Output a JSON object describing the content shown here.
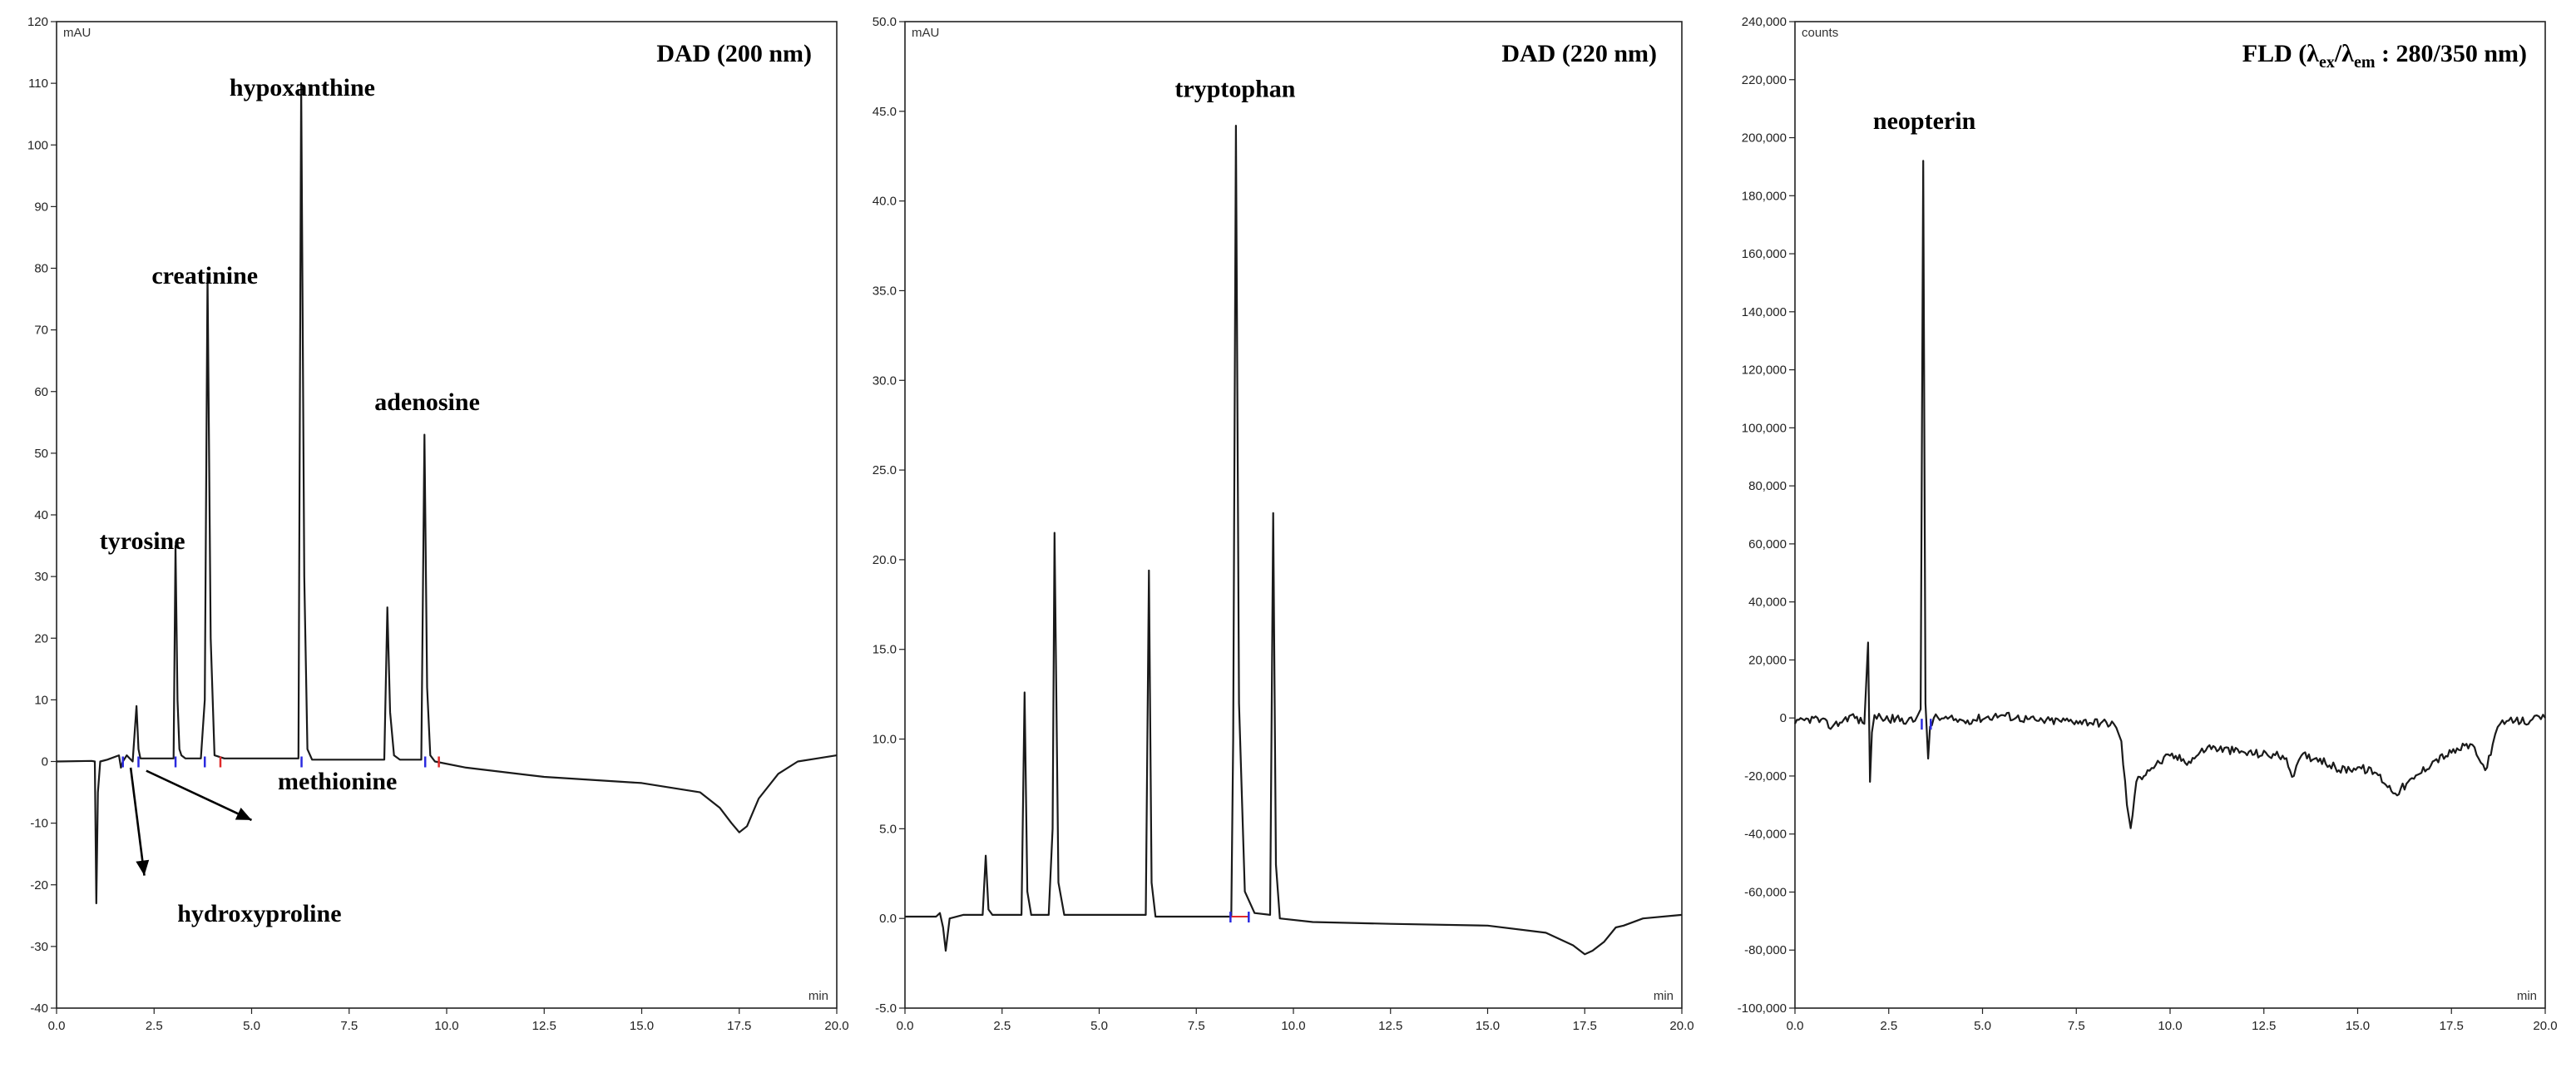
{
  "chart_data": [
    {
      "type": "line",
      "title": "DAD (200 nm)",
      "y_unit": "mAU",
      "x_unit": "min",
      "xlim": [
        0,
        20
      ],
      "ylim": [
        -40,
        120
      ],
      "x_ticks": [
        "0.0",
        "2.5",
        "5.0",
        "7.5",
        "10.0",
        "12.5",
        "15.0",
        "17.5",
        "20.0"
      ],
      "x_tick_values": [
        0,
        2.5,
        5,
        7.5,
        10,
        12.5,
        15,
        17.5,
        20
      ],
      "y_ticks": [
        "-40",
        "-30",
        "-20",
        "-10",
        "0",
        "10",
        "20",
        "30",
        "40",
        "50",
        "60",
        "70",
        "80",
        "90",
        "100",
        "110",
        "120"
      ],
      "y_tick_values": [
        -40,
        -30,
        -20,
        -10,
        0,
        10,
        20,
        30,
        40,
        50,
        60,
        70,
        80,
        90,
        100,
        110,
        120
      ],
      "grid": false,
      "series": [
        {
          "x": [
            0,
            0.9,
            0.98,
            1.02,
            1.06,
            1.12,
            1.3,
            1.6,
            1.65,
            1.7,
            1.8,
            1.95,
            2.05,
            2.1,
            2.15,
            2.25,
            3.0,
            3.05,
            3.1,
            3.15,
            3.2,
            3.3,
            3.7,
            3.8,
            3.87,
            3.95,
            4.05,
            4.3,
            6.2,
            6.27,
            6.35,
            6.43,
            6.55,
            8.4,
            8.48,
            8.55,
            8.65,
            8.8,
            9.35,
            9.43,
            9.5,
            9.58,
            9.7,
            10.5,
            12.5,
            15.0,
            16.5,
            17.0,
            17.3,
            17.5,
            17.7,
            18.0,
            18.5,
            19.0,
            19.5,
            20.0
          ],
          "y": [
            0,
            0.1,
            0,
            -23,
            -5,
            0,
            0.3,
            1,
            -1,
            0,
            1,
            0,
            9,
            2,
            0.5,
            0.5,
            0.5,
            35,
            10,
            2,
            1,
            0.5,
            0.5,
            10,
            79,
            20,
            1,
            0.5,
            0.5,
            110,
            30,
            2,
            0.3,
            0.3,
            25,
            8,
            1,
            0.3,
            0.3,
            53,
            12,
            1,
            0,
            -1,
            -2.5,
            -3.5,
            -5,
            -7.5,
            -10,
            -11.5,
            -10.5,
            -6,
            -2,
            0,
            0.5,
            1
          ]
        }
      ],
      "annotations": [
        "tyrosine",
        "creatinine",
        "hypoxanthine",
        "adenosine",
        "methionine",
        "hydroxyproline"
      ]
    },
    {
      "type": "line",
      "title": "DAD (220 nm)",
      "y_unit": "mAU",
      "x_unit": "min",
      "xlim": [
        0,
        20
      ],
      "ylim": [
        -5,
        50
      ],
      "x_ticks": [
        "0.0",
        "2.5",
        "5.0",
        "7.5",
        "10.0",
        "12.5",
        "15.0",
        "17.5",
        "20.0"
      ],
      "x_tick_values": [
        0,
        2.5,
        5,
        7.5,
        10,
        12.5,
        15,
        17.5,
        20
      ],
      "y_ticks": [
        "-5.0",
        "0.0",
        "5.0",
        "10.0",
        "15.0",
        "20.0",
        "25.0",
        "30.0",
        "35.0",
        "40.0",
        "45.0",
        "50.0"
      ],
      "y_tick_values": [
        -5,
        0,
        5,
        10,
        15,
        20,
        25,
        30,
        35,
        40,
        45,
        50
      ],
      "grid": false,
      "series": [
        {
          "x": [
            0,
            0.8,
            0.9,
            0.98,
            1.05,
            1.15,
            1.5,
            2.0,
            2.08,
            2.15,
            2.25,
            3.0,
            3.08,
            3.15,
            3.25,
            3.7,
            3.8,
            3.85,
            3.95,
            4.1,
            6.2,
            6.28,
            6.35,
            6.45,
            8.4,
            8.45,
            8.52,
            8.6,
            8.75,
            9.0,
            9.4,
            9.48,
            9.55,
            9.65,
            10.5,
            12.5,
            15.0,
            16.5,
            17.2,
            17.5,
            17.7,
            18.0,
            18.3,
            18.5,
            19.0,
            20.0
          ],
          "y": [
            0.1,
            0.1,
            0.3,
            -0.5,
            -1.8,
            0,
            0.2,
            0.2,
            3.5,
            0.5,
            0.2,
            0.2,
            12.6,
            1.5,
            0.2,
            0.2,
            5,
            21.5,
            2,
            0.2,
            0.2,
            19.4,
            2,
            0.1,
            0.1,
            10,
            44.2,
            12,
            1.5,
            0.3,
            0.2,
            22.6,
            3,
            0,
            -0.2,
            -0.3,
            -0.4,
            -0.8,
            -1.5,
            -2,
            -1.8,
            -1.3,
            -0.5,
            -0.4,
            0,
            0.2
          ]
        }
      ],
      "annotations": [
        "tryptophan"
      ]
    },
    {
      "type": "line",
      "title_parts": [
        "FLD",
        "(λ",
        "ex",
        "/λ",
        "em",
        " : 280/350 nm)"
      ],
      "y_unit": "counts",
      "x_unit": "min",
      "xlim": [
        0,
        20
      ],
      "ylim": [
        -100000,
        240000
      ],
      "x_ticks": [
        "0.0",
        "2.5",
        "5.0",
        "7.5",
        "10.0",
        "12.5",
        "15.0",
        "17.5",
        "20.0"
      ],
      "x_tick_values": [
        0,
        2.5,
        5,
        7.5,
        10,
        12.5,
        15,
        17.5,
        20
      ],
      "y_ticks": [
        "-100,000",
        "-80,000",
        "-60,000",
        "-40,000",
        "-20,000",
        "0",
        "20,000",
        "40,000",
        "60,000",
        "80,000",
        "100,000",
        "120,000",
        "140,000",
        "160,000",
        "180,000",
        "200,000",
        "220,000",
        "240,000"
      ],
      "y_tick_values": [
        -100000,
        -80000,
        -60000,
        -40000,
        -20000,
        0,
        20000,
        40000,
        60000,
        80000,
        100000,
        120000,
        140000,
        160000,
        180000,
        200000,
        220000,
        240000
      ],
      "grid": false,
      "series": [
        {
          "x": [
            0,
            0.5,
            1.0,
            1.5,
            1.85,
            1.95,
            2.0,
            2.05,
            2.12,
            2.3,
            3.2,
            3.35,
            3.42,
            3.48,
            3.55,
            3.6,
            3.7,
            4.5,
            5.5,
            6.5,
            7.5,
            8.5,
            8.7,
            8.85,
            8.95,
            9.1,
            9.4,
            10.0,
            10.5,
            11.0,
            12.0,
            13.0,
            13.3,
            13.5,
            14.0,
            14.5,
            15.0,
            15.5,
            16.0,
            16.5,
            17.0,
            17.5,
            18.0,
            18.4,
            18.6,
            18.8,
            19.2,
            19.6,
            20.0
          ],
          "y": [
            -2000,
            0,
            -3000,
            1000,
            -2000,
            26000,
            -22000,
            -5000,
            1000,
            0,
            -1000,
            3000,
            192000,
            5000,
            -14000,
            -3000,
            0,
            -1000,
            1000,
            -1000,
            -1000,
            -2000,
            -8000,
            -30000,
            -38000,
            -22000,
            -18000,
            -13000,
            -15000,
            -10000,
            -12000,
            -13000,
            -20000,
            -13000,
            -14000,
            -18000,
            -17000,
            -19000,
            -26000,
            -21000,
            -15000,
            -12000,
            -9000,
            -18000,
            -9000,
            -2000,
            -1000,
            -1000,
            0
          ]
        }
      ],
      "annotations": [
        "neopterin"
      ]
    }
  ]
}
